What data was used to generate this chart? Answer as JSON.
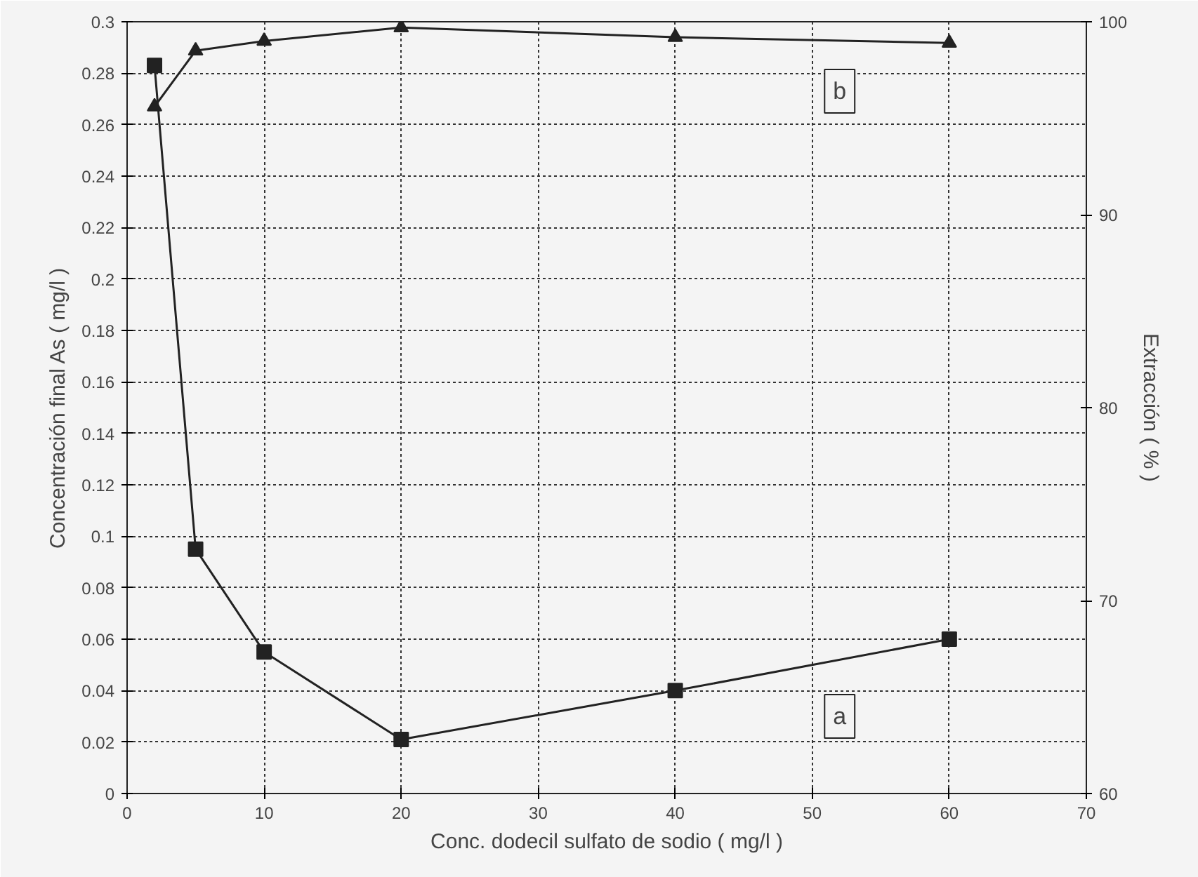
{
  "chart_data": {
    "type": "line",
    "xlabel": "Conc. dodecil sulfato de sodio ( mg/l )",
    "ylabel": "Concentración final As ( mg/l )",
    "y2label": "Extracción ( % )",
    "x": [
      2,
      5,
      10,
      20,
      40,
      60
    ],
    "series": [
      {
        "color": "#222222",
        "marker": "square",
        "values": [
          0.283,
          0.095,
          0.055,
          0.021,
          0.04,
          0.06
        ]
      },
      {
        "color": "#222222",
        "marker": "triangle",
        "axis": "y2",
        "values": [
          95.6,
          98.5,
          99.0,
          99.7,
          99.2,
          98.9
        ]
      }
    ],
    "xlim": [
      0,
      70
    ],
    "xticks": [
      0,
      10,
      20,
      30,
      40,
      50,
      60,
      70
    ],
    "ylim": [
      0,
      0.3
    ],
    "yticks": [
      0,
      0.02,
      0.04,
      0.06,
      0.08,
      0.1,
      0.12,
      0.14,
      0.16,
      0.18,
      0.2,
      0.22,
      0.24,
      0.26,
      0.28,
      0.3
    ],
    "y2lim": [
      60,
      100
    ],
    "y2ticks": [
      60,
      70,
      80,
      90,
      100
    ],
    "annotations": [
      {
        "text": "a",
        "x": 52,
        "y": 0.03
      },
      {
        "text": "b",
        "x": 52,
        "y": 0.273
      }
    ],
    "grid": true
  }
}
